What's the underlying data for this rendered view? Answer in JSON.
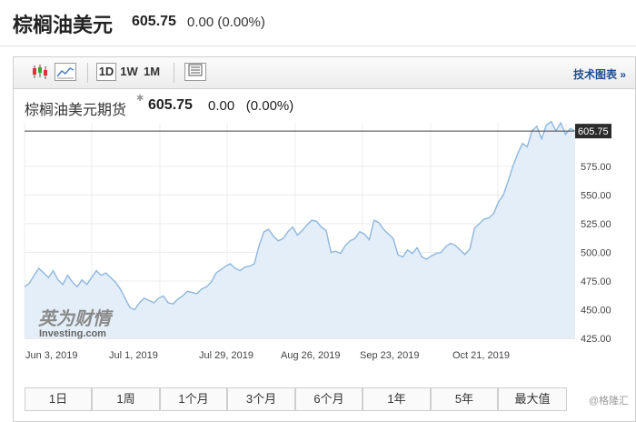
{
  "header": {
    "title": "棕榈油美元",
    "price": "605.75",
    "change": "0.00 (0.00%)"
  },
  "toolbar": {
    "intervals": [
      "1D",
      "1W",
      "1M"
    ],
    "active_interval": "1D",
    "tech_link": "技术图表 »"
  },
  "chart_header": {
    "title": "棕榈油美元期货",
    "price": "605.75",
    "change": "0.00",
    "change_pct": "(0.00%)"
  },
  "ranges": [
    "1日",
    "1周",
    "1个月",
    "3个月",
    "6个月",
    "1年",
    "5年",
    "最大值"
  ],
  "watermark": "@格隆汇",
  "logo": {
    "line1": "英为财情",
    "line2": "Investing.com"
  },
  "colors": {
    "line": "#8fb7dd",
    "fill": "#e3eef8",
    "last_price_bg": "#2b2b2b"
  },
  "chart_data": {
    "type": "area",
    "x_ticks": [
      "Jun 3, 2019",
      "Jul 1, 2019",
      "Jul 29, 2019",
      "Aug 26, 2019",
      "Sep 23, 2019",
      "Oct 21, 2019"
    ],
    "y_ticks": [
      "425.00",
      "450.00",
      "475.00",
      "500.00",
      "525.00",
      "550.00",
      "575.00"
    ],
    "ylim": [
      425,
      613
    ],
    "last_price": 605.75,
    "last_price_label": "605.75",
    "grid": true,
    "values": [
      470,
      473,
      480,
      486,
      482,
      478,
      484,
      476,
      472,
      480,
      474,
      470,
      476,
      472,
      478,
      484,
      480,
      482,
      478,
      474,
      468,
      460,
      452,
      450,
      456,
      460,
      458,
      456,
      460,
      462,
      456,
      455,
      459,
      462,
      466,
      465,
      464,
      468,
      470,
      474,
      482,
      485,
      488,
      490,
      486,
      484,
      487,
      488,
      490,
      506,
      518,
      520,
      514,
      510,
      512,
      518,
      522,
      515,
      519,
      524,
      528,
      527,
      522,
      519,
      500,
      501,
      499,
      506,
      510,
      512,
      518,
      516,
      511,
      528,
      526,
      520,
      516,
      512,
      498,
      496,
      502,
      499,
      504,
      496,
      494,
      497,
      499,
      500,
      505,
      508,
      506,
      502,
      498,
      503,
      521,
      525,
      529,
      530,
      534,
      544,
      550,
      562,
      575,
      586,
      595,
      592,
      606,
      610,
      599,
      611,
      614,
      606,
      613,
      603,
      608,
      605.75
    ]
  }
}
